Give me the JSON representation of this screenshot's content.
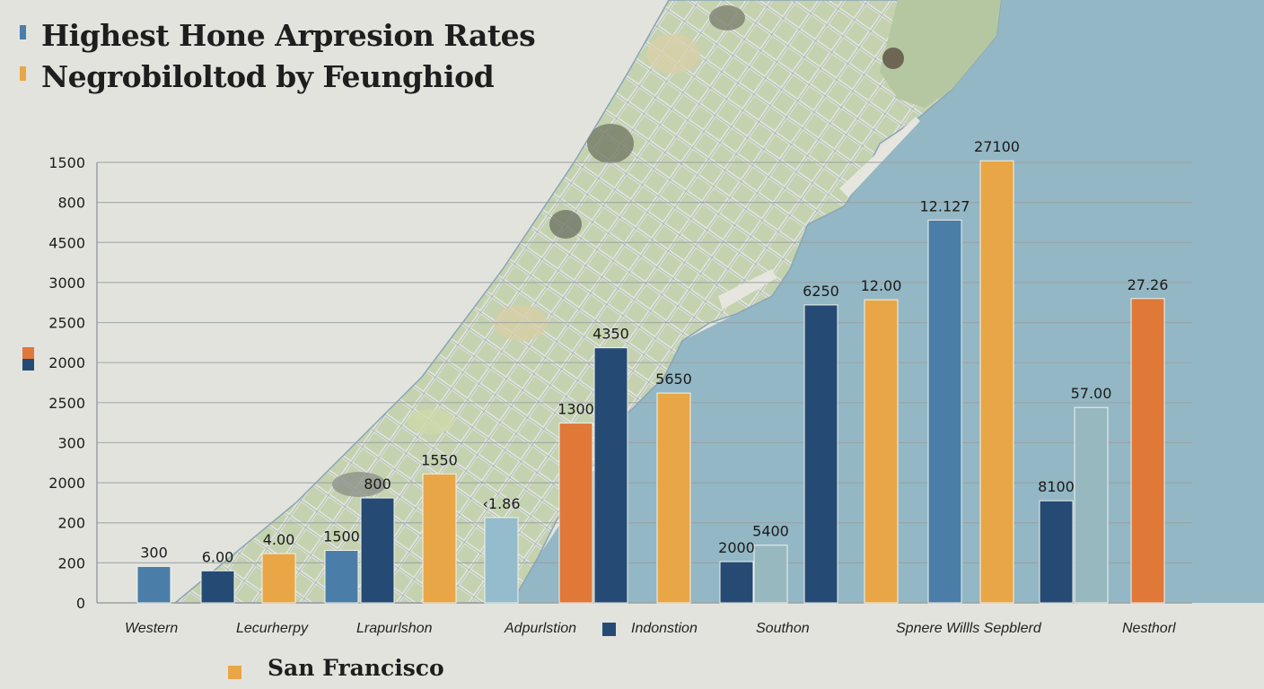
{
  "colors": {
    "background": "#e3e3de",
    "water": "#93b7c4",
    "land": "#b9c9a4",
    "steel_blue": "#4a7ea8",
    "navy": "#254b75",
    "gold": "#e9a646",
    "orange": "#e07838",
    "light_blue": "#94bccd",
    "grey_blue": "#98b8c0",
    "gridline": "#9aa0a2"
  },
  "titles": {
    "line1": "Highest Hone Arpresion Rates",
    "line2": "Negrobiloltod by Feunghiod"
  },
  "bottom_legend": {
    "label": "San Francisco"
  },
  "chart_data": {
    "type": "bar",
    "title": "Highest Hone Arpresion Rates",
    "subtitle": "Negrobiloltod by Feunghiod",
    "xlabel": "",
    "ylabel": "",
    "grid": true,
    "y_tick_labels": [
      "0",
      "200",
      "200",
      "2000",
      "300",
      "2500",
      "2000",
      "2500",
      "3000",
      "4500",
      "800",
      "1500"
    ],
    "y_scale_note": "bar heights expressed in tick-index units (0 = baseline, 11 = top tick)",
    "ylim": [
      0,
      11
    ],
    "categories": [
      "Western",
      "Lecurherpy",
      "Lrapurlshon",
      "Adpurlstion",
      "Indonstion",
      "Southon",
      "Spnere Willls Sepblerd",
      "Nesthorl"
    ],
    "legend": [
      {
        "name": "Indonstion",
        "color": "#254b75",
        "placement": "bottom-inline"
      },
      {
        "name": "San Francisco",
        "color": "#e9a646",
        "placement": "bottom-left"
      },
      {
        "name": "",
        "color": "#e07838",
        "placement": "left-axis"
      },
      {
        "name": "",
        "color": "#254b75",
        "placement": "left-axis"
      }
    ],
    "bars": [
      {
        "category": "Western",
        "label": "300",
        "value": 0.91,
        "color": "#4a7ea8"
      },
      {
        "category": "Lecurherpy",
        "label": "6.00",
        "value": 0.8,
        "color": "#254b75"
      },
      {
        "category": "Lecurherpy",
        "label": "4.00",
        "value": 1.23,
        "color": "#e9a646"
      },
      {
        "category": "Lrapurlshon",
        "label": "1500",
        "value": 1.31,
        "color": "#4a7ea8"
      },
      {
        "category": "Lrapurlshon",
        "label": "800",
        "value": 2.62,
        "color": "#254b75"
      },
      {
        "category": "Lrapurlshon",
        "label": "1550",
        "value": 3.22,
        "color": "#e9a646"
      },
      {
        "category": "Adpurlstion",
        "label": "‹1.86",
        "value": 2.13,
        "color": "#94bccd"
      },
      {
        "category": "Adpurlstion",
        "label": "1300",
        "value": 4.49,
        "color": "#e07838"
      },
      {
        "category": "Indonstion",
        "label": "4350",
        "value": 6.37,
        "color": "#254b75"
      },
      {
        "category": "Indonstion",
        "label": "5650",
        "value": 5.24,
        "color": "#e9a646"
      },
      {
        "category": "Southon",
        "label": "2000",
        "value": 1.03,
        "color": "#254b75"
      },
      {
        "category": "Southon",
        "label": "5400",
        "value": 1.44,
        "color": "#98b8c0"
      },
      {
        "category": "Southon",
        "label": "6250",
        "value": 7.44,
        "color": "#254b75"
      },
      {
        "category": "Spnere Willls Sepblerd",
        "label": "12.00",
        "value": 7.57,
        "color": "#e9a646"
      },
      {
        "category": "Spnere Willls Sepblerd",
        "label": "12.127",
        "value": 9.56,
        "color": "#4a7ea8"
      },
      {
        "category": "Spnere Willls Sepblerd",
        "label": "27100",
        "value": 11.04,
        "color": "#e9a646"
      },
      {
        "category": "Nesthorl",
        "label": "8100",
        "value": 2.55,
        "color": "#254b75"
      },
      {
        "category": "Nesthorl",
        "label": "57.00",
        "value": 4.88,
        "color": "#98b8c0"
      },
      {
        "category": "Nesthorl",
        "label": "27.26",
        "value": 7.6,
        "color": "#e07838"
      }
    ]
  }
}
